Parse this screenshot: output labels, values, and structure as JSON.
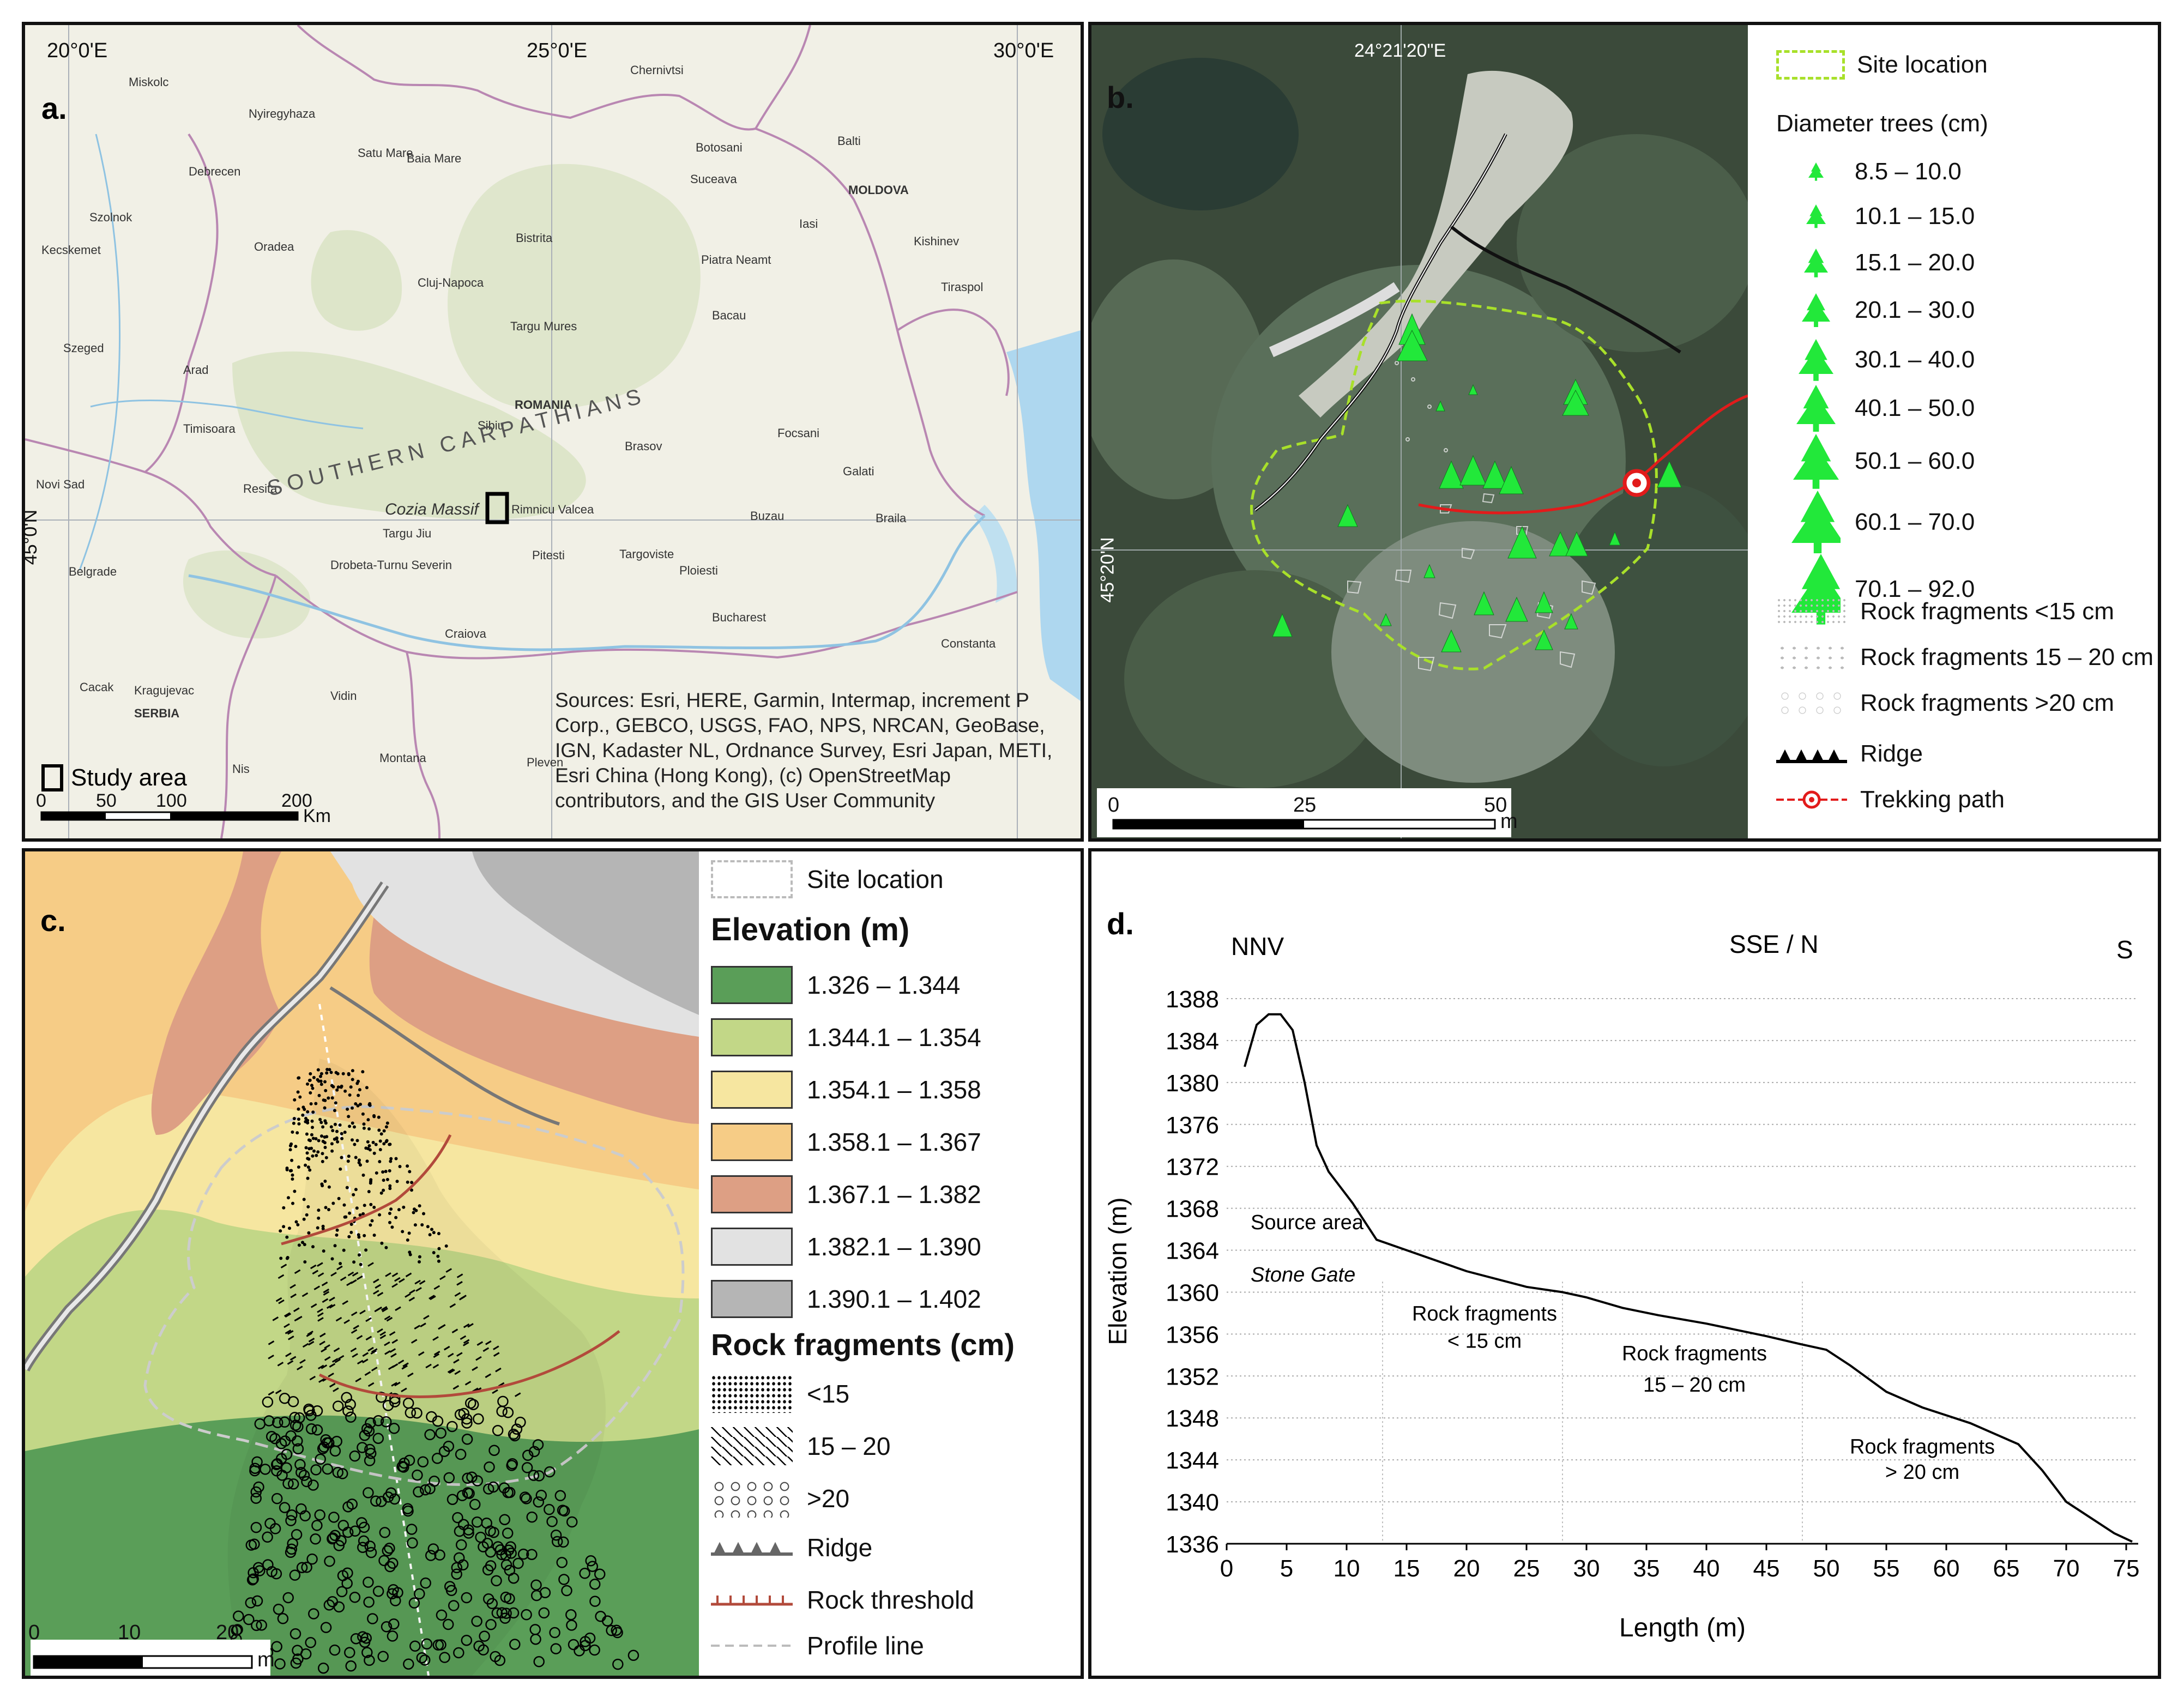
{
  "panel_a": {
    "label": "a.",
    "lon_labels": [
      "20°0'E",
      "25°0'E",
      "30°0'E"
    ],
    "lat_label": "45°0'N",
    "places": [
      {
        "t": "Miskolc"
      },
      {
        "t": "Nyiregyhaza"
      },
      {
        "t": "Debrecen"
      },
      {
        "t": "Szolnok"
      },
      {
        "t": "Kecskemet"
      },
      {
        "t": "Szeged"
      },
      {
        "t": "Arad"
      },
      {
        "t": "Timisoara"
      },
      {
        "t": "Novi Sad"
      },
      {
        "t": "Belgrade"
      },
      {
        "t": "Resita"
      },
      {
        "t": "Oradea"
      },
      {
        "t": "Satu Mare"
      },
      {
        "t": "Baia Mare"
      },
      {
        "t": "Cluj-Napoca"
      },
      {
        "t": "Targu Mures"
      },
      {
        "t": "Bistrita"
      },
      {
        "t": "Chernivtsi"
      },
      {
        "t": "Botosani"
      },
      {
        "t": "Suceava"
      },
      {
        "t": "Balti"
      },
      {
        "t": "Iasi"
      },
      {
        "t": "MOLDOVA"
      },
      {
        "t": "Kishinev"
      },
      {
        "t": "Tiraspol"
      },
      {
        "t": "Piatra Neamt"
      },
      {
        "t": "Bacau"
      },
      {
        "t": "ROMANIA"
      },
      {
        "t": "Sibiu"
      },
      {
        "t": "Brasov"
      },
      {
        "t": "Focsani"
      },
      {
        "t": "Galati"
      },
      {
        "t": "Braila"
      },
      {
        "t": "Buzau"
      },
      {
        "t": "Targoviste"
      },
      {
        "t": "Ploiesti"
      },
      {
        "t": "Pitesti"
      },
      {
        "t": "Rimnicu Valcea"
      },
      {
        "t": "Targu Jiu"
      },
      {
        "t": "Drobeta-Turnu Severin"
      },
      {
        "t": "Craiova"
      },
      {
        "t": "Bucharest"
      },
      {
        "t": "Constanta"
      },
      {
        "t": "Kragujevac"
      },
      {
        "t": "Cacak"
      },
      {
        "t": "SERBIA"
      },
      {
        "t": "Vidin"
      },
      {
        "t": "Montana"
      },
      {
        "t": "Nis"
      },
      {
        "t": "Pleven"
      },
      {
        "t": "Cozia Massif"
      }
    ],
    "range_label": "SOUTHERN CARPATHIANS",
    "legend_study_area": "Study area",
    "sources": "Sources: Esri, HERE, Garmin, Intermap, increment P Corp., GEBCO, USGS, FAO, NPS, NRCAN, GeoBase, IGN, Kadaster NL, Ordnance Survey, Esri Japan, METI, Esri China (Hong Kong), (c) OpenStreetMap contributors, and the GIS User Community",
    "scale_ticks": [
      "0",
      "50",
      "100",
      "200"
    ],
    "scale_unit": "Km"
  },
  "panel_b": {
    "label": "b.",
    "lon_label": "24°21'20\"E",
    "lat_label": "45°20'N",
    "scale_ticks": [
      "0",
      "25",
      "50"
    ],
    "scale_unit": "m",
    "legend": {
      "site": "Site location",
      "diameter_title": "Diameter trees (cm)",
      "classes": [
        "8.5 – 10.0",
        "10.1 – 15.0",
        "15.1 – 20.0",
        "20.1 – 30.0",
        "30.1 – 40.0",
        "40.1 – 50.0",
        "50.1 – 60.0",
        "60.1 – 70.0",
        "70.1 – 92.0"
      ],
      "rock_small": "Rock fragments <15 cm",
      "rock_mid": "Rock fragments 15 – 20 cm",
      "rock_large": "Rock fragments >20 cm",
      "ridge": "Ridge",
      "path": "Trekking path"
    },
    "colors": {
      "tree": "#22e83a",
      "site": "#a8e02a",
      "path": "#e21b1b"
    }
  },
  "panel_c": {
    "label": "c.",
    "scale_ticks": [
      "0",
      "10",
      "20"
    ],
    "scale_unit": "m",
    "legend": {
      "site": "Site location",
      "elev_title": "Elevation (m)",
      "elev_classes": [
        {
          "label": "1.326 – 1.344",
          "color": "#5a9e58"
        },
        {
          "label": "1.344.1 – 1.354",
          "color": "#c2d787"
        },
        {
          "label": "1.354.1 – 1.358",
          "color": "#f6e6a0"
        },
        {
          "label": "1.358.1 – 1.367",
          "color": "#f6cc86"
        },
        {
          "label": "1.367.1 – 1.382",
          "color": "#dd9f84"
        },
        {
          "label": "1.382.1 – 1.390",
          "color": "#e2e2e2"
        },
        {
          "label": "1.390.1 – 1.402",
          "color": "#b5b5b5"
        }
      ],
      "rock_title": "Rock fragments (cm)",
      "rock_classes": [
        "<15",
        "15 – 20",
        ">20"
      ],
      "ridge": "Ridge",
      "threshold": "Rock threshold",
      "profile": "Profile line"
    }
  },
  "panel_d": {
    "label": "d.",
    "dir_left": "NNV",
    "dir_mid": "SSE / N",
    "dir_right": "S",
    "annotations": {
      "source1": "Source area",
      "source2": "Stone Gate",
      "rf1a": "Rock fragments",
      "rf1b": "< 15 cm",
      "rf2a": "Rock fragments",
      "rf2b": "15 – 20 cm",
      "rf3a": "Rock fragments",
      "rf3b": "> 20 cm"
    }
  },
  "chart_data": {
    "type": "line",
    "title": "",
    "xlabel": "Length (m)",
    "ylabel": "Elevation (m)",
    "xlim": [
      0,
      76
    ],
    "ylim": [
      1336,
      1388
    ],
    "xticks": [
      0,
      5,
      10,
      15,
      20,
      25,
      30,
      35,
      40,
      45,
      50,
      55,
      60,
      65,
      70,
      75
    ],
    "yticks": [
      1336,
      1340,
      1344,
      1348,
      1352,
      1356,
      1360,
      1364,
      1368,
      1372,
      1376,
      1380,
      1384,
      1388
    ],
    "grid": "horizontal dotted",
    "series": [
      {
        "x": [
          1.5,
          2.5,
          3.5,
          4.5,
          5.5,
          6.5,
          7.5,
          8.5,
          9.5,
          10.5,
          12.5,
          15,
          20,
          25,
          28,
          30,
          33,
          36,
          40,
          45,
          48,
          50,
          52,
          55,
          58,
          62,
          64,
          66,
          68,
          70,
          72,
          74,
          75.5
        ],
        "y": [
          1381.5,
          1385.5,
          1386.5,
          1386.5,
          1385,
          1380,
          1374,
          1371.5,
          1370,
          1368.5,
          1365,
          1364,
          1362,
          1360.5,
          1360,
          1359.5,
          1358.5,
          1357.8,
          1357,
          1355.8,
          1355,
          1354.5,
          1353,
          1350.5,
          1349,
          1347.5,
          1346.5,
          1345.5,
          1343,
          1340,
          1338.5,
          1337,
          1336.2
        ]
      }
    ],
    "ann_positions": [
      {
        "x": 2,
        "y": 1366
      },
      {
        "x": 2,
        "y": 1361
      },
      {
        "x": 21.5,
        "y": 1357.3
      },
      {
        "x": 21.5,
        "y": 1354.7
      },
      {
        "x": 39,
        "y": 1353.5
      },
      {
        "x": 39,
        "y": 1350.5
      },
      {
        "x": 58,
        "y": 1344.6
      },
      {
        "x": 58,
        "y": 1342.2
      }
    ]
  }
}
